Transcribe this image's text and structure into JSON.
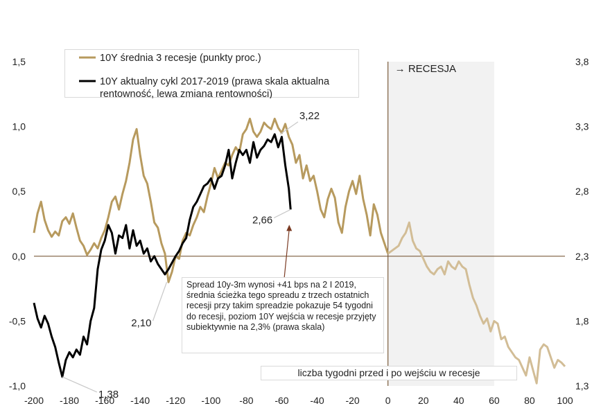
{
  "chart_data": {
    "type": "line",
    "xlabel": "liczba tygodni przed i po wejściu w recesje",
    "xlim": [
      -200,
      100
    ],
    "ylim_left": [
      -1.0,
      1.5
    ],
    "ylim_right": [
      1.3,
      3.8
    ],
    "x_ticks": [
      "-200",
      "-180",
      "-160",
      "-140",
      "-120",
      "-100",
      "-80",
      "-60",
      "-40",
      "-20",
      "0",
      "20",
      "40",
      "60",
      "80",
      "100"
    ],
    "y_left_ticks": [
      "1,5",
      "1,0",
      "0,5",
      "0,0",
      "-0,5",
      "-1,0"
    ],
    "y_right_ticks": [
      "3,8",
      "3,3",
      "2,8",
      "2,3",
      "1,8",
      "1,3"
    ],
    "recession_label": "→ RECESJA",
    "recession_shade_range": [
      0,
      60
    ],
    "series": [
      {
        "name": "10Y średnia 3 recesje (punkty proc.)",
        "color": "#b79a5e",
        "color_after_zero": "#d2bd96",
        "axis": "left",
        "points": [
          [
            -200,
            0.18
          ],
          [
            -198,
            0.33
          ],
          [
            -196,
            0.42
          ],
          [
            -194,
            0.28
          ],
          [
            -192,
            0.2
          ],
          [
            -190,
            0.15
          ],
          [
            -188,
            0.19
          ],
          [
            -186,
            0.16
          ],
          [
            -184,
            0.27
          ],
          [
            -182,
            0.3
          ],
          [
            -180,
            0.25
          ],
          [
            -178,
            0.33
          ],
          [
            -176,
            0.22
          ],
          [
            -174,
            0.12
          ],
          [
            -172,
            0.08
          ],
          [
            -170,
            0.01
          ],
          [
            -168,
            0.05
          ],
          [
            -166,
            0.1
          ],
          [
            -164,
            0.06
          ],
          [
            -162,
            0.14
          ],
          [
            -160,
            0.2
          ],
          [
            -158,
            0.3
          ],
          [
            -156,
            0.42
          ],
          [
            -154,
            0.46
          ],
          [
            -152,
            0.36
          ],
          [
            -150,
            0.48
          ],
          [
            -148,
            0.58
          ],
          [
            -146,
            0.72
          ],
          [
            -144,
            0.9
          ],
          [
            -142,
            0.98
          ],
          [
            -140,
            0.78
          ],
          [
            -138,
            0.62
          ],
          [
            -136,
            0.56
          ],
          [
            -134,
            0.42
          ],
          [
            -132,
            0.26
          ],
          [
            -130,
            0.22
          ],
          [
            -128,
            0.1
          ],
          [
            -126,
            0.02
          ],
          [
            -124,
            -0.2
          ],
          [
            -122,
            -0.12
          ],
          [
            -120,
            0.0
          ],
          [
            -118,
            -0.02
          ],
          [
            -116,
            0.12
          ],
          [
            -114,
            0.18
          ],
          [
            -112,
            0.16
          ],
          [
            -110,
            0.24
          ],
          [
            -108,
            0.3
          ],
          [
            -106,
            0.38
          ],
          [
            -104,
            0.34
          ],
          [
            -102,
            0.46
          ],
          [
            -100,
            0.56
          ],
          [
            -98,
            0.68
          ],
          [
            -96,
            0.6
          ],
          [
            -94,
            0.66
          ],
          [
            -92,
            0.72
          ],
          [
            -90,
            0.7
          ],
          [
            -88,
            0.78
          ],
          [
            -86,
            0.84
          ],
          [
            -84,
            0.8
          ],
          [
            -82,
            0.94
          ],
          [
            -80,
            0.98
          ],
          [
            -78,
            1.06
          ],
          [
            -76,
            0.96
          ],
          [
            -74,
            0.92
          ],
          [
            -72,
            0.96
          ],
          [
            -70,
            1.03
          ],
          [
            -68,
            1.0
          ],
          [
            -66,
            0.98
          ],
          [
            -64,
            1.06
          ],
          [
            -62,
            0.99
          ],
          [
            -60,
            0.95
          ],
          [
            -58,
            1.02
          ],
          [
            -56,
            0.92
          ],
          [
            -54,
            0.86
          ],
          [
            -52,
            0.72
          ],
          [
            -50,
            0.78
          ],
          [
            -48,
            0.6
          ],
          [
            -46,
            0.7
          ],
          [
            -44,
            0.58
          ],
          [
            -42,
            0.62
          ],
          [
            -40,
            0.5
          ],
          [
            -38,
            0.36
          ],
          [
            -36,
            0.3
          ],
          [
            -34,
            0.44
          ],
          [
            -32,
            0.52
          ],
          [
            -30,
            0.45
          ],
          [
            -28,
            0.26
          ],
          [
            -26,
            0.18
          ],
          [
            -24,
            0.38
          ],
          [
            -22,
            0.5
          ],
          [
            -20,
            0.58
          ],
          [
            -18,
            0.48
          ],
          [
            -16,
            0.62
          ],
          [
            -14,
            0.44
          ],
          [
            -12,
            0.32
          ],
          [
            -10,
            0.16
          ],
          [
            -8,
            0.4
          ],
          [
            -6,
            0.32
          ],
          [
            -4,
            0.18
          ],
          [
            -2,
            0.1
          ],
          [
            0,
            0.02
          ],
          [
            2,
            0.04
          ],
          [
            4,
            0.06
          ],
          [
            6,
            0.08
          ],
          [
            8,
            0.14
          ],
          [
            10,
            0.18
          ],
          [
            12,
            0.26
          ],
          [
            14,
            0.12
          ],
          [
            16,
            0.06
          ],
          [
            18,
            0.04
          ],
          [
            20,
            -0.02
          ],
          [
            22,
            -0.08
          ],
          [
            24,
            -0.12
          ],
          [
            26,
            -0.14
          ],
          [
            28,
            -0.1
          ],
          [
            30,
            -0.08
          ],
          [
            32,
            -0.14
          ],
          [
            34,
            -0.04
          ],
          [
            36,
            -0.08
          ],
          [
            38,
            -0.1
          ],
          [
            40,
            -0.04
          ],
          [
            42,
            -0.08
          ],
          [
            44,
            -0.1
          ],
          [
            46,
            -0.22
          ],
          [
            48,
            -0.32
          ],
          [
            50,
            -0.38
          ],
          [
            52,
            -0.46
          ],
          [
            54,
            -0.52
          ],
          [
            56,
            -0.48
          ],
          [
            58,
            -0.58
          ],
          [
            60,
            -0.5
          ],
          [
            62,
            -0.52
          ],
          [
            64,
            -0.64
          ],
          [
            66,
            -0.62
          ],
          [
            68,
            -0.7
          ],
          [
            70,
            -0.74
          ],
          [
            72,
            -0.78
          ],
          [
            74,
            -0.8
          ],
          [
            76,
            -0.86
          ],
          [
            78,
            -0.92
          ],
          [
            80,
            -0.78
          ],
          [
            82,
            -0.88
          ],
          [
            84,
            -0.98
          ],
          [
            86,
            -0.72
          ],
          [
            88,
            -0.68
          ],
          [
            90,
            -0.7
          ],
          [
            92,
            -0.78
          ],
          [
            94,
            -0.86
          ],
          [
            96,
            -0.8
          ],
          [
            98,
            -0.82
          ],
          [
            100,
            -0.85
          ]
        ]
      },
      {
        "name": "10Y aktualny cykl 2017-2019 (prawa skala aktualna rentowność, lewa zmiana rentowności)",
        "color": "#000000",
        "axis": "left",
        "points": [
          [
            -200,
            -0.36
          ],
          [
            -198,
            -0.48
          ],
          [
            -196,
            -0.55
          ],
          [
            -194,
            -0.46
          ],
          [
            -192,
            -0.52
          ],
          [
            -190,
            -0.62
          ],
          [
            -188,
            -0.7
          ],
          [
            -186,
            -0.82
          ],
          [
            -184,
            -0.93
          ],
          [
            -182,
            -0.8
          ],
          [
            -180,
            -0.74
          ],
          [
            -178,
            -0.78
          ],
          [
            -176,
            -0.72
          ],
          [
            -174,
            -0.76
          ],
          [
            -172,
            -0.62
          ],
          [
            -170,
            -0.68
          ],
          [
            -168,
            -0.5
          ],
          [
            -166,
            -0.4
          ],
          [
            -164,
            -0.1
          ],
          [
            -162,
            0.05
          ],
          [
            -160,
            0.12
          ],
          [
            -158,
            0.24
          ],
          [
            -156,
            0.18
          ],
          [
            -154,
            0.02
          ],
          [
            -152,
            0.16
          ],
          [
            -150,
            0.14
          ],
          [
            -148,
            0.24
          ],
          [
            -146,
            0.06
          ],
          [
            -144,
            0.2
          ],
          [
            -142,
            0.08
          ],
          [
            -140,
            0.12
          ],
          [
            -138,
            0.02
          ],
          [
            -136,
            0.06
          ],
          [
            -134,
            -0.04
          ],
          [
            -132,
            0.0
          ],
          [
            -130,
            -0.06
          ],
          [
            -128,
            -0.1
          ],
          [
            -126,
            -0.14
          ],
          [
            -124,
            -0.1
          ],
          [
            -122,
            -0.05
          ],
          [
            -120,
            0.0
          ],
          [
            -118,
            0.04
          ],
          [
            -116,
            0.1
          ],
          [
            -114,
            0.14
          ],
          [
            -112,
            0.28
          ],
          [
            -110,
            0.38
          ],
          [
            -108,
            0.42
          ],
          [
            -106,
            0.48
          ],
          [
            -104,
            0.54
          ],
          [
            -102,
            0.56
          ],
          [
            -100,
            0.6
          ],
          [
            -98,
            0.52
          ],
          [
            -96,
            0.6
          ],
          [
            -94,
            0.62
          ],
          [
            -92,
            0.7
          ],
          [
            -90,
            0.82
          ],
          [
            -88,
            0.6
          ],
          [
            -86,
            0.72
          ],
          [
            -84,
            0.82
          ],
          [
            -82,
            0.78
          ],
          [
            -80,
            0.82
          ],
          [
            -78,
            0.72
          ],
          [
            -76,
            0.88
          ],
          [
            -74,
            0.76
          ],
          [
            -72,
            0.82
          ],
          [
            -70,
            0.85
          ],
          [
            -68,
            0.9
          ],
          [
            -66,
            0.88
          ],
          [
            -64,
            0.94
          ],
          [
            -62,
            0.84
          ],
          [
            -60,
            0.92
          ],
          [
            -58,
            0.7
          ],
          [
            -56,
            0.52
          ],
          [
            -55,
            0.36
          ]
        ]
      }
    ],
    "annotations": [
      {
        "text": "3,22",
        "x": -61,
        "y": 0.94
      },
      {
        "text": "2,66",
        "x": -55,
        "y": 0.36
      },
      {
        "text": "2,10",
        "x": -125,
        "y": -0.2
      },
      {
        "text": "1,38",
        "x": -184,
        "y": -0.93
      }
    ],
    "note": "Spread 10y-3m wynosi +41 bps na 2 I 2019, średnia ścieżka tego spreadu z trzech ostatnich recesji przy takim spreadzie pokazuje 54 tygodni do recesji, poziom 10Y wejścia w recesje przyjęty subiektywnie na 2,3% (prawa skala)",
    "legend": [
      {
        "label": "10Y średnia 3 recesje (punkty proc.)"
      },
      {
        "label_line1": "10Y aktualny cykl 2017-2019 (prawa skala aktualna",
        "label_line2": "rentowność, lewa zmiana rentowności)"
      }
    ]
  }
}
